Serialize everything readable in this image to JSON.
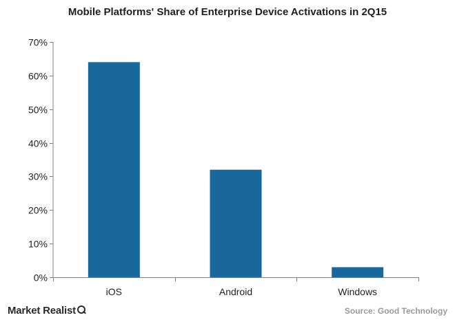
{
  "chart_data": {
    "type": "bar",
    "title": "Mobile Platforms' Share of Enterprise Device Activations in 2Q15",
    "categories": [
      "iOS",
      "Android",
      "Windows"
    ],
    "values": [
      64,
      32,
      3
    ],
    "ylim": [
      0,
      70
    ],
    "yticks": [
      0,
      10,
      20,
      30,
      40,
      50,
      60,
      70
    ],
    "ytick_labels": [
      "0%",
      "10%",
      "20%",
      "30%",
      "40%",
      "50%",
      "60%",
      "70%"
    ],
    "xlabel": "",
    "ylabel": "",
    "grid": false,
    "bar_color": "#19689b"
  },
  "footer": {
    "brand": "Market Realist",
    "source": "Source: Good Technology"
  }
}
